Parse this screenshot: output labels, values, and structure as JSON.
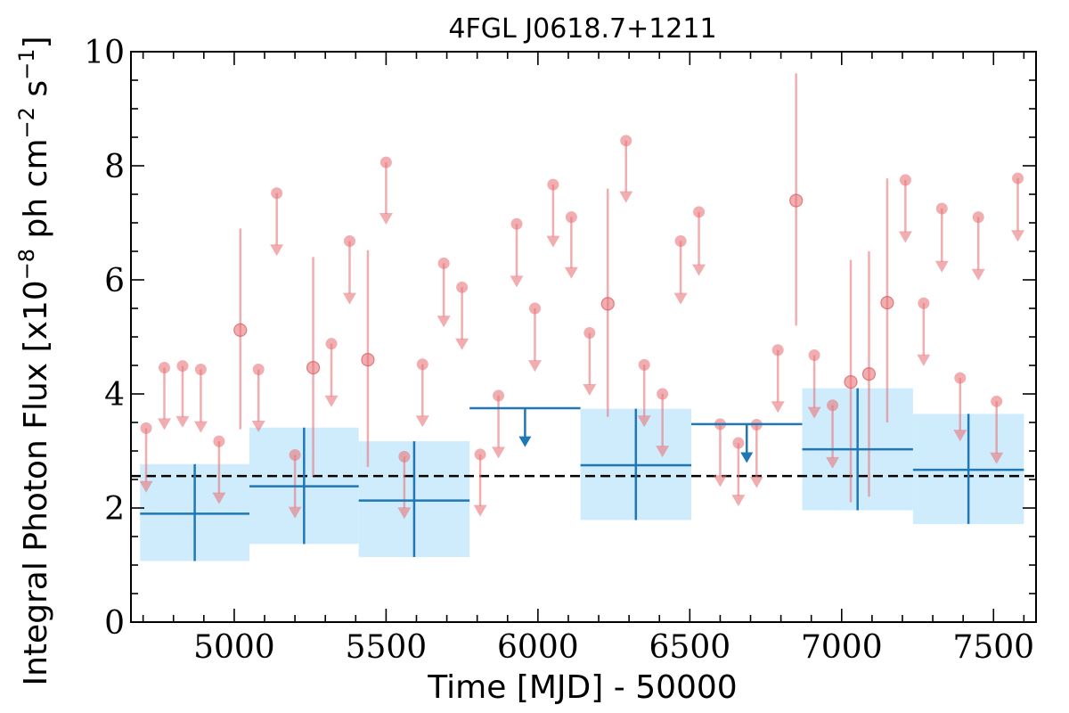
{
  "chart_data": {
    "type": "scatter",
    "title": "4FGL J0618.7+1211",
    "xlabel": "Time [MJD] - 50000",
    "ylabel": "Integral Photon Flux [x10",
    "ylabel_exp1": "−8",
    "ylabel_mid": " ph cm",
    "ylabel_exp2": "−2",
    "ylabel_mid2": " s",
    "ylabel_exp3": "−1",
    "ylabel_end": "]",
    "xlim": [
      4660,
      7640
    ],
    "ylim": [
      0,
      10
    ],
    "x_ticks": [
      5000,
      5500,
      6000,
      6500,
      7000,
      7500
    ],
    "x_tick_labels": [
      "5000",
      "5500",
      "6000",
      "6500",
      "7000",
      "7500"
    ],
    "y_ticks": [
      0,
      2,
      4,
      6,
      8,
      10
    ],
    "y_tick_labels": [
      "0",
      "2",
      "4",
      "6",
      "8",
      "10"
    ],
    "reference_line": {
      "y": 2.56,
      "style": "dashed",
      "color": "#000000"
    },
    "colors": {
      "fine": "#e8767a",
      "coarse": "#1f77b4",
      "band": "#bfe6fb"
    },
    "series": [
      {
        "bin_width": 60,
        "detections": [
          {
            "x": 5020,
            "y": 5.12,
            "lo": 3.38,
            "hi": 6.9
          },
          {
            "x": 5260,
            "y": 4.46,
            "lo": 2.56,
            "hi": 6.4
          },
          {
            "x": 5440,
            "y": 4.6,
            "lo": 2.72,
            "hi": 6.52
          },
          {
            "x": 6230,
            "y": 5.58,
            "lo": 3.6,
            "hi": 7.6
          },
          {
            "x": 6850,
            "y": 7.39,
            "lo": 5.2,
            "hi": 9.62
          },
          {
            "x": 7030,
            "y": 4.21,
            "lo": 2.1,
            "hi": 6.35
          },
          {
            "x": 7090,
            "y": 4.35,
            "lo": 2.2,
            "hi": 6.5
          },
          {
            "x": 7150,
            "y": 5.6,
            "lo": 3.5,
            "hi": 7.78
          }
        ],
        "upper_limits": [
          {
            "x": 4710,
            "y": 3.4,
            "ul_end": 2.3
          },
          {
            "x": 4770,
            "y": 4.46,
            "ul_end": 3.4
          },
          {
            "x": 4830,
            "y": 4.49,
            "ul_end": 3.44
          },
          {
            "x": 4890,
            "y": 4.43,
            "ul_end": 3.35
          },
          {
            "x": 4950,
            "y": 3.17,
            "ul_end": 2.1
          },
          {
            "x": 5080,
            "y": 4.43,
            "ul_end": 3.36
          },
          {
            "x": 5140,
            "y": 7.52,
            "ul_end": 6.45
          },
          {
            "x": 5200,
            "y": 2.93,
            "ul_end": 1.85
          },
          {
            "x": 5320,
            "y": 4.88,
            "ul_end": 3.8
          },
          {
            "x": 5380,
            "y": 6.68,
            "ul_end": 5.6
          },
          {
            "x": 5500,
            "y": 8.06,
            "ul_end": 7.0
          },
          {
            "x": 5560,
            "y": 2.9,
            "ul_end": 1.84
          },
          {
            "x": 5620,
            "y": 4.52,
            "ul_end": 3.45
          },
          {
            "x": 5690,
            "y": 6.29,
            "ul_end": 5.2
          },
          {
            "x": 5750,
            "y": 5.87,
            "ul_end": 4.8
          },
          {
            "x": 5810,
            "y": 2.94,
            "ul_end": 1.88
          },
          {
            "x": 5870,
            "y": 3.97,
            "ul_end": 2.9
          },
          {
            "x": 5930,
            "y": 6.98,
            "ul_end": 5.9
          },
          {
            "x": 5990,
            "y": 5.5,
            "ul_end": 4.42
          },
          {
            "x": 6050,
            "y": 7.67,
            "ul_end": 6.6
          },
          {
            "x": 6110,
            "y": 7.1,
            "ul_end": 6.05
          },
          {
            "x": 6170,
            "y": 5.07,
            "ul_end": 4.0
          },
          {
            "x": 6290,
            "y": 8.44,
            "ul_end": 7.38
          },
          {
            "x": 6350,
            "y": 4.51,
            "ul_end": 3.45
          },
          {
            "x": 6410,
            "y": 4.0,
            "ul_end": 2.92
          },
          {
            "x": 6470,
            "y": 6.68,
            "ul_end": 5.6
          },
          {
            "x": 6530,
            "y": 7.19,
            "ul_end": 6.1
          },
          {
            "x": 6600,
            "y": 3.47,
            "ul_end": 2.4
          },
          {
            "x": 6660,
            "y": 3.14,
            "ul_end": 2.06
          },
          {
            "x": 6720,
            "y": 3.46,
            "ul_end": 2.38
          },
          {
            "x": 6790,
            "y": 4.77,
            "ul_end": 3.7
          },
          {
            "x": 6910,
            "y": 4.68,
            "ul_end": 3.6
          },
          {
            "x": 6970,
            "y": 3.8,
            "ul_end": 2.72
          },
          {
            "x": 7210,
            "y": 7.75,
            "ul_end": 6.68
          },
          {
            "x": 7270,
            "y": 5.59,
            "ul_end": 4.52
          },
          {
            "x": 7330,
            "y": 7.25,
            "ul_end": 6.16
          },
          {
            "x": 7390,
            "y": 4.28,
            "ul_end": 3.2
          },
          {
            "x": 7450,
            "y": 7.1,
            "ul_end": 6.02
          },
          {
            "x": 7510,
            "y": 3.87,
            "ul_end": 2.8
          },
          {
            "x": 7580,
            "y": 7.78,
            "ul_end": 6.7
          }
        ]
      },
      {
        "detections": [
          {
            "x0": 4690,
            "x1": 5050,
            "y": 1.9,
            "lo": 1.07,
            "hi": 2.77
          },
          {
            "x0": 5050,
            "x1": 5410,
            "y": 2.38,
            "lo": 1.37,
            "hi": 3.41
          },
          {
            "x0": 5410,
            "x1": 5775,
            "y": 2.13,
            "lo": 1.14,
            "hi": 3.17
          },
          {
            "x0": 6140,
            "x1": 6505,
            "y": 2.75,
            "lo": 1.79,
            "hi": 3.74
          },
          {
            "x0": 6870,
            "x1": 7235,
            "y": 3.03,
            "lo": 1.96,
            "hi": 4.1
          },
          {
            "x0": 7235,
            "x1": 7600,
            "y": 2.67,
            "lo": 1.72,
            "hi": 3.65
          }
        ],
        "upper_limits": [
          {
            "x0": 5775,
            "x1": 6140,
            "y": 3.75,
            "ul_end": 3.1
          },
          {
            "x0": 6505,
            "x1": 6870,
            "y": 3.47,
            "ul_end": 2.82
          }
        ]
      }
    ]
  }
}
